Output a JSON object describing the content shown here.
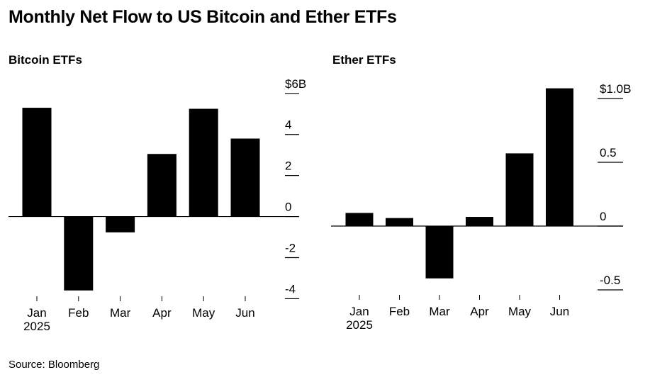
{
  "title": "Monthly Net Flow to US Bitcoin and Ether ETFs",
  "source": "Source: Bloomberg",
  "chart_data": [
    {
      "type": "bar",
      "title": "Bitcoin ETFs",
      "categories": [
        "Jan",
        "Feb",
        "Mar",
        "Apr",
        "May",
        "Jun"
      ],
      "year_label": "2025",
      "values": [
        5.3,
        -3.6,
        -0.77,
        3.05,
        5.25,
        3.8
      ],
      "ylim": [
        -4.4,
        6.2
      ],
      "yticks": [
        6,
        4,
        2,
        0,
        -2,
        -4
      ],
      "ytick_labels": [
        "$6B",
        "4",
        "2",
        "0",
        "-2",
        "-4"
      ],
      "unit": "USD billions",
      "grid": false
    },
    {
      "type": "bar",
      "title": "Ether ETFs",
      "categories": [
        "Jan",
        "Feb",
        "Mar",
        "Apr",
        "May",
        "Jun"
      ],
      "year_label": "2025",
      "values": [
        0.103,
        0.063,
        -0.41,
        0.072,
        0.57,
        1.08
      ],
      "ylim": [
        -0.55,
        1.1
      ],
      "yticks": [
        1.0,
        0.5,
        0,
        -0.5
      ],
      "ytick_labels": [
        "$1.0B",
        "0.5",
        "0",
        "-0.5"
      ],
      "unit": "USD billions",
      "grid": false
    }
  ]
}
